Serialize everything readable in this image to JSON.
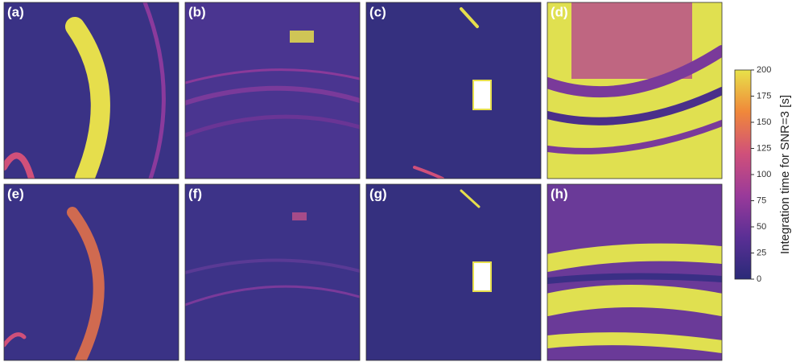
{
  "chart_data": {
    "type": "heatmap",
    "panel_labels": [
      "(a)",
      "(b)",
      "(c)",
      "(d)",
      "(e)",
      "(f)",
      "(g)",
      "(h)"
    ],
    "colorbar": {
      "label": "Integration time for SNR=3 [s]",
      "lim": [
        0,
        200
      ],
      "ticks": [
        0,
        25,
        50,
        75,
        100,
        125,
        150,
        175,
        200
      ],
      "colors": [
        "#2a2a78",
        "#5a2f95",
        "#9a3a9a",
        "#d0507a",
        "#f0883a",
        "#e8e24a"
      ]
    }
  }
}
